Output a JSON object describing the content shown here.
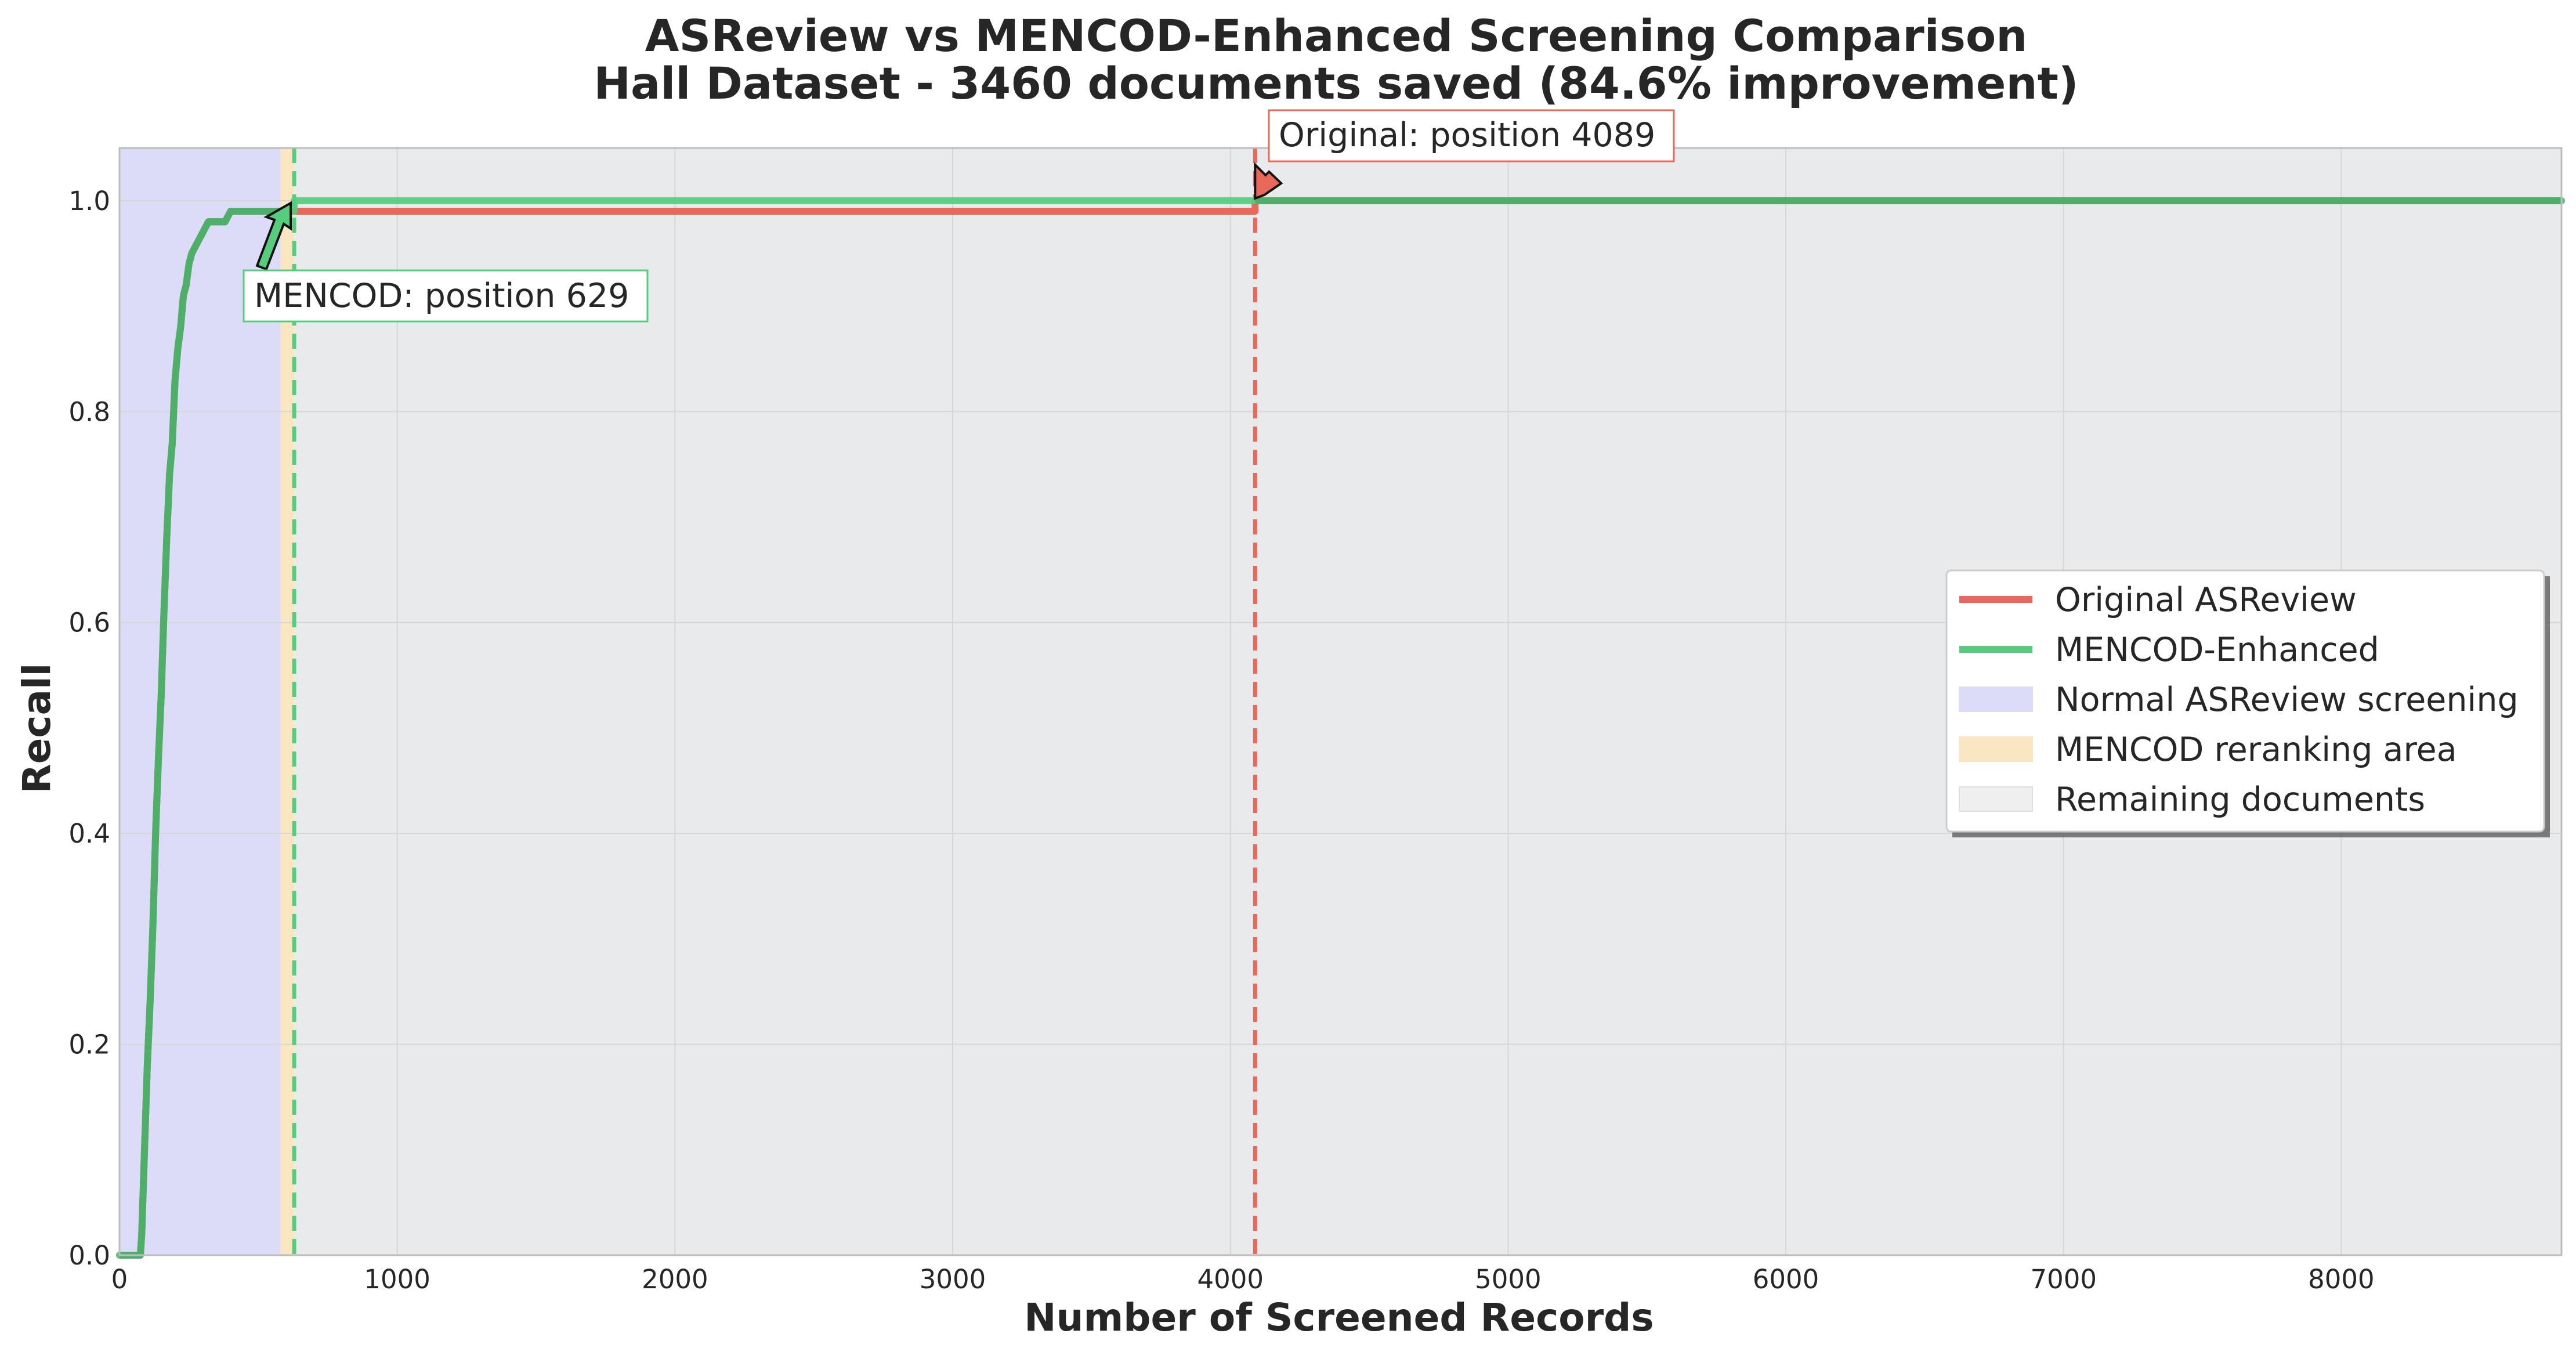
{
  "chart_data": {
    "type": "line",
    "title_line1": "ASReview vs MENCOD-Enhanced Screening Comparison",
    "title_line2": "Hall Dataset - 3460 documents saved (84.6% improvement)",
    "xlabel": "Number of Screened Records",
    "ylabel": "Recall",
    "xlim": [
      0,
      8793
    ],
    "ylim": [
      0,
      1.05
    ],
    "grid": true,
    "x_ticks": [
      0,
      1000,
      2000,
      3000,
      4000,
      5000,
      6000,
      7000,
      8000
    ],
    "y_ticks": [
      0.0,
      0.2,
      0.4,
      0.6,
      0.8,
      1.0
    ],
    "x_tick_labels": [
      "0",
      "1000",
      "2000",
      "3000",
      "4000",
      "5000",
      "6000",
      "7000",
      "8000"
    ],
    "y_tick_labels": [
      "0.0",
      "0.2",
      "0.4",
      "0.6",
      "0.8",
      "1.0"
    ],
    "regions": [
      {
        "name": "Normal ASReview screening",
        "x_start": 0,
        "x_end": 580,
        "color": "#dcdcf8"
      },
      {
        "name": "MENCOD reranking area",
        "x_start": 580,
        "x_end": 629,
        "color": "#fbe6c2"
      },
      {
        "name": "Remaining documents",
        "x_start": 629,
        "x_end": 8793,
        "color": "#e9eaec"
      }
    ],
    "series": [
      {
        "name": "Original ASReview",
        "color": "#e8685a",
        "x": [
          0,
          75,
          80,
          90,
          100,
          110,
          120,
          130,
          140,
          150,
          160,
          170,
          180,
          190,
          200,
          210,
          220,
          230,
          240,
          250,
          260,
          280,
          300,
          320,
          340,
          360,
          380,
          400,
          430,
          500,
          580,
          4089,
          4089,
          8793
        ],
        "y": [
          0,
          0,
          0.02,
          0.1,
          0.18,
          0.24,
          0.31,
          0.4,
          0.47,
          0.53,
          0.61,
          0.68,
          0.74,
          0.77,
          0.83,
          0.86,
          0.88,
          0.91,
          0.92,
          0.94,
          0.95,
          0.96,
          0.97,
          0.98,
          0.98,
          0.98,
          0.98,
          0.99,
          0.99,
          0.99,
          0.99,
          0.99,
          1.0,
          1.0
        ]
      },
      {
        "name": "MENCOD-Enhanced",
        "color": "#56cc7e",
        "x": [
          0,
          75,
          80,
          90,
          100,
          110,
          120,
          130,
          140,
          150,
          160,
          170,
          180,
          190,
          200,
          210,
          220,
          230,
          240,
          250,
          260,
          280,
          300,
          320,
          340,
          360,
          380,
          400,
          430,
          500,
          580,
          629,
          629,
          8793
        ],
        "y": [
          0,
          0,
          0.02,
          0.1,
          0.18,
          0.24,
          0.31,
          0.4,
          0.47,
          0.53,
          0.61,
          0.68,
          0.74,
          0.77,
          0.83,
          0.86,
          0.88,
          0.91,
          0.92,
          0.94,
          0.95,
          0.96,
          0.97,
          0.98,
          0.98,
          0.98,
          0.98,
          0.99,
          0.99,
          0.99,
          0.99,
          0.99,
          1.0,
          1.0
        ]
      }
    ],
    "vlines": [
      {
        "x": 629,
        "color": "#56cc7e"
      },
      {
        "x": 4089,
        "color": "#e8685a"
      }
    ],
    "annotations": [
      {
        "text": "MENCOD: position 629",
        "x": 629,
        "y": 1.0,
        "color": "#56cc7e"
      },
      {
        "text": "Original: position 4089",
        "x": 4089,
        "y": 1.0,
        "color": "#e8685a"
      }
    ],
    "legend": {
      "position": "center-right",
      "items": [
        {
          "label": "Original ASReview",
          "kind": "line",
          "color": "#e8685a"
        },
        {
          "label": "MENCOD-Enhanced",
          "kind": "line",
          "color": "#56cc7e"
        },
        {
          "label": "Normal ASReview screening",
          "kind": "patch",
          "color": "#dcdcf8"
        },
        {
          "label": "MENCOD reranking area",
          "kind": "patch",
          "color": "#fbe6c2"
        },
        {
          "label": "Remaining documents",
          "kind": "patch",
          "color": "#efefef"
        }
      ]
    }
  }
}
